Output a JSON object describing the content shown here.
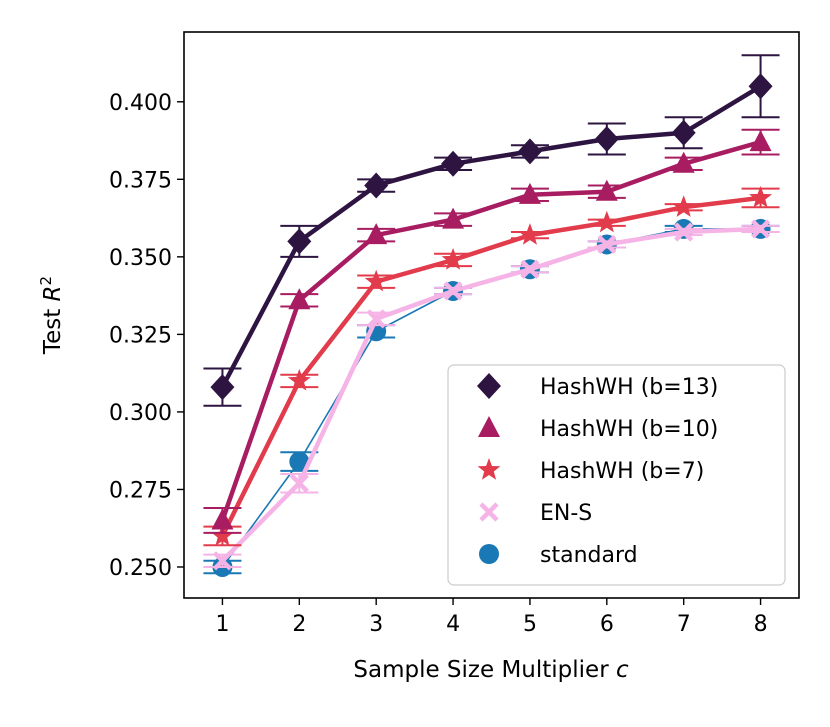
{
  "chart_data": {
    "type": "line",
    "xlabel": "Sample Size Multiplier ",
    "xlabel_var": "c",
    "ylabel": "Test ",
    "ylabel_var": "R",
    "ylabel_sup": "2",
    "x": [
      1,
      2,
      3,
      4,
      5,
      6,
      7,
      8
    ],
    "xlim": [
      0.5,
      8.5
    ],
    "ylim": [
      0.24,
      0.4225
    ],
    "xticks": [
      1,
      2,
      3,
      4,
      5,
      6,
      7,
      8
    ],
    "yticks": [
      "0.250",
      "0.275",
      "0.300",
      "0.325",
      "0.350",
      "0.375",
      "0.400"
    ],
    "legend_position": "lower-right",
    "series": [
      {
        "name": "standard",
        "color": "#1a78b5",
        "marker": "circle",
        "values": [
          0.25,
          0.284,
          0.326,
          0.339,
          0.346,
          0.354,
          0.359,
          0.359
        ],
        "errors": [
          0.002,
          0.003,
          0.002,
          0.001,
          0.001,
          0.001,
          0.001,
          0.001
        ]
      },
      {
        "name": "EN-S",
        "color": "#f5b3e6",
        "marker": "x",
        "values": [
          0.252,
          0.277,
          0.33,
          0.339,
          0.346,
          0.354,
          0.358,
          0.359
        ],
        "errors": [
          0.002,
          0.003,
          0.002,
          0.001,
          0.001,
          0.001,
          0.001,
          0.001
        ]
      },
      {
        "name": "HashWH (b=7)",
        "color": "#e23b4b",
        "marker": "star",
        "values": [
          0.26,
          0.31,
          0.342,
          0.349,
          0.357,
          0.361,
          0.366,
          0.369
        ],
        "errors": [
          0.003,
          0.002,
          0.002,
          0.002,
          0.001,
          0.001,
          0.001,
          0.003
        ]
      },
      {
        "name": "HashWH (b=10)",
        "color": "#a81c61",
        "marker": "triangle",
        "values": [
          0.265,
          0.336,
          0.357,
          0.362,
          0.37,
          0.371,
          0.38,
          0.387
        ],
        "errors": [
          0.004,
          0.002,
          0.002,
          0.002,
          0.002,
          0.002,
          0.002,
          0.004
        ]
      },
      {
        "name": "HashWH (b=13)",
        "color": "#2d1441",
        "marker": "diamond",
        "values": [
          0.308,
          0.355,
          0.373,
          0.38,
          0.384,
          0.388,
          0.39,
          0.405
        ],
        "errors": [
          0.006,
          0.005,
          0.002,
          0.002,
          0.002,
          0.005,
          0.005,
          0.01
        ]
      }
    ],
    "legend_order": [
      "HashWH (b=13)",
      "HashWH (b=10)",
      "HashWH (b=7)",
      "EN-S",
      "standard"
    ]
  }
}
